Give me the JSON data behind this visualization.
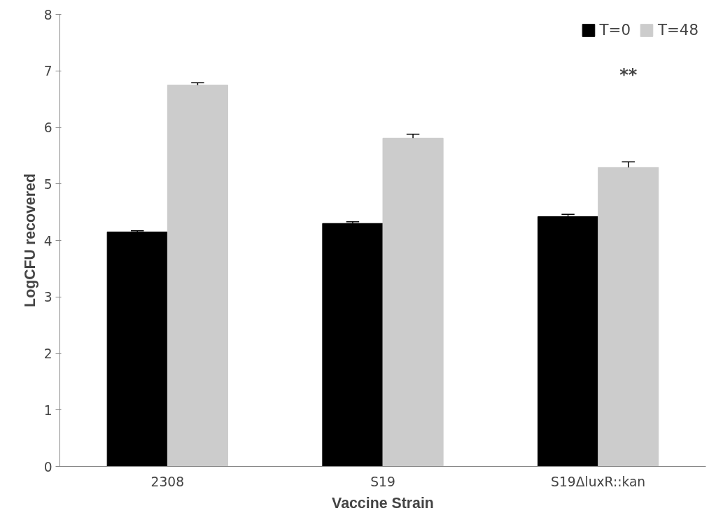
{
  "chart_data": {
    "type": "bar",
    "xlabel": "Vaccine Strain",
    "ylabel": "LogCFU recovered",
    "categories": [
      "2308",
      "S19",
      "S19ΔluxR::kan"
    ],
    "series": [
      {
        "name": "T=0",
        "color": "#000000",
        "values": [
          4.15,
          4.3,
          4.42
        ],
        "errors": [
          0.02,
          0.03,
          0.04
        ]
      },
      {
        "name": "T=48",
        "color": "#cccccc",
        "values": [
          6.75,
          5.81,
          5.29
        ],
        "errors": [
          0.04,
          0.07,
          0.1
        ]
      }
    ],
    "ylim": [
      0,
      8
    ],
    "yticks": [
      0,
      1,
      2,
      3,
      4,
      5,
      6,
      7,
      8
    ],
    "grid": false,
    "legend": "top right",
    "annotations": [
      "**"
    ]
  }
}
